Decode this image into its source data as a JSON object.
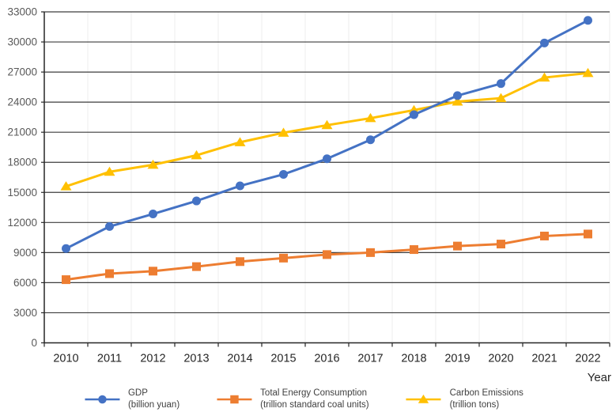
{
  "chart_data": {
    "type": "line",
    "title": "",
    "xlabel": "Year",
    "ylabel": "",
    "ylim": [
      0,
      33000
    ],
    "ytick_step": 3000,
    "grid": "horizontal-dark-with-light-vertical",
    "legend_position": "bottom",
    "x": [
      2010,
      2011,
      2012,
      2013,
      2014,
      2015,
      2016,
      2017,
      2018,
      2019,
      2020,
      2021,
      2022
    ],
    "series": [
      {
        "name": "GDP",
        "unit": "(billion yuan)",
        "color": "#4472C4",
        "marker": "circle",
        "values": [
          9400,
          11600,
          12850,
          14150,
          15650,
          16800,
          18350,
          20250,
          22750,
          24650,
          25850,
          29900,
          32150
        ]
      },
      {
        "name": "Total Energy Consumption",
        "unit": "(trillion standard coal units)",
        "color": "#ED7D31",
        "marker": "square",
        "values": [
          6300,
          6900,
          7150,
          7600,
          8100,
          8450,
          8800,
          9000,
          9300,
          9650,
          9850,
          10650,
          10850
        ]
      },
      {
        "name": "Carbon Emissions",
        "unit": "(trillion tons)",
        "color": "#FFC000",
        "marker": "triangle",
        "values": [
          15600,
          17050,
          17750,
          18700,
          20000,
          20950,
          21700,
          22400,
          23200,
          24050,
          24400,
          26450,
          26900
        ]
      }
    ]
  },
  "axes": {
    "y_ticks": [
      "0",
      "3000",
      "6000",
      "9000",
      "12000",
      "15000",
      "18000",
      "21000",
      "24000",
      "27000",
      "30000",
      "33000"
    ],
    "x_axis_label": "Year"
  },
  "style_colors": {
    "grid_dark": "#3d3d3d",
    "grid_light": "#ededed",
    "axis": "#262626",
    "y_tick_text": "#595959",
    "x_tick_text": "#262626"
  }
}
